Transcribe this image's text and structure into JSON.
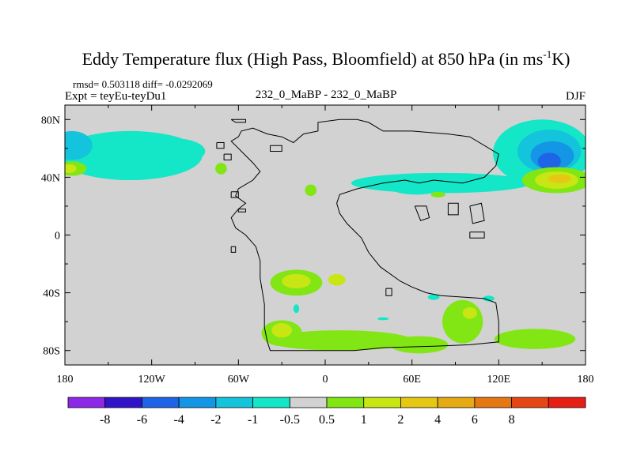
{
  "chart_data": {
    "type": "heatmap",
    "title": {
      "main": "Eddy Temperature flux (High Pass, Bloomfield) at 850 hPa (in ms",
      "sup": "-1",
      "end": "K)"
    },
    "stats_line": "rmsd= 0.503118 diff= -0.0292069",
    "expt_line": "Expt = teyEu-teyDu1",
    "center_label": "232_0_MaBP - 232_0_MaBP",
    "season": "DJF",
    "x_axis": {
      "range": [
        -180,
        180
      ],
      "ticks": [
        {
          "value": -180,
          "label": "180"
        },
        {
          "value": -120,
          "label": "120W"
        },
        {
          "value": -60,
          "label": "60W"
        },
        {
          "value": 0,
          "label": "0"
        },
        {
          "value": 60,
          "label": "60E"
        },
        {
          "value": 120,
          "label": "120E"
        },
        {
          "value": 180,
          "label": "180"
        }
      ]
    },
    "y_axis": {
      "range": [
        -90,
        90
      ],
      "ticks": [
        {
          "value": 80,
          "label": "80N"
        },
        {
          "value": 40,
          "label": "40N"
        },
        {
          "value": 0,
          "label": "0"
        },
        {
          "value": -40,
          "label": "40S"
        },
        {
          "value": -80,
          "label": "80S"
        }
      ]
    },
    "colorbar": {
      "colors": [
        "#8c28e6",
        "#3214c8",
        "#1e64e6",
        "#1496e6",
        "#14c3dc",
        "#14e6c8",
        "#d2d2d2",
        "#82e614",
        "#c8e614",
        "#e6c814",
        "#e6aa14",
        "#e67814",
        "#e64614",
        "#e61e14"
      ],
      "labels": [
        "-8",
        "-6",
        "-4",
        "-2",
        "-1",
        "-0.5",
        "0.5",
        "1",
        "2",
        "4",
        "6",
        "8"
      ]
    },
    "background_color": "#d2d2d2",
    "regions": [
      {
        "level": 5,
        "lon": -135,
        "lat": 55,
        "rlon": 50,
        "rlat": 17
      },
      {
        "level": 5,
        "lon": -105,
        "lat": 58,
        "rlon": 22,
        "rlat": 9
      },
      {
        "level": 4,
        "lon": -175,
        "lat": 62,
        "rlon": 14,
        "rlat": 10
      },
      {
        "level": 5,
        "lon": 150,
        "lat": 57,
        "rlon": 34,
        "rlat": 23
      },
      {
        "level": 4,
        "lon": 155,
        "lat": 58,
        "rlon": 22,
        "rlat": 15
      },
      {
        "level": 3,
        "lon": 157,
        "lat": 55,
        "rlon": 15,
        "rlat": 10
      },
      {
        "level": 2,
        "lon": 155,
        "lat": 51,
        "rlon": 8,
        "rlat": 6
      },
      {
        "level": 5,
        "lon": 80,
        "lat": 36,
        "rlon": 62,
        "rlat": 7
      },
      {
        "level": 5,
        "lon": 63,
        "lat": 33,
        "rlon": 18,
        "rlat": 5
      },
      {
        "level": 7,
        "lon": 160,
        "lat": 38,
        "rlon": 24,
        "rlat": 9
      },
      {
        "level": 8,
        "lon": 160,
        "lat": 38,
        "rlon": 15,
        "rlat": 6
      },
      {
        "level": 9,
        "lon": 162,
        "lat": 39,
        "rlon": 8,
        "rlat": 3
      },
      {
        "level": 7,
        "lon": -175,
        "lat": 46,
        "rlon": 10,
        "rlat": 5
      },
      {
        "level": 8,
        "lon": -177,
        "lat": 46,
        "rlon": 5,
        "rlat": 3
      },
      {
        "level": 7,
        "lon": -72,
        "lat": 46,
        "rlon": 4,
        "rlat": 4
      },
      {
        "level": 7,
        "lon": -10,
        "lat": 31,
        "rlon": 4,
        "rlat": 4
      },
      {
        "level": 7,
        "lon": 78,
        "lat": 28,
        "rlon": 5,
        "rlat": 2
      },
      {
        "level": 7,
        "lon": -20,
        "lat": -33,
        "rlon": 18,
        "rlat": 9
      },
      {
        "level": 8,
        "lon": -20,
        "lat": -32,
        "rlon": 10,
        "rlat": 5
      },
      {
        "level": 8,
        "lon": 8,
        "lat": -31,
        "rlon": 6,
        "rlat": 4
      },
      {
        "level": 7,
        "lon": 10,
        "lat": -73,
        "rlon": 50,
        "rlat": 7
      },
      {
        "level": 7,
        "lon": -30,
        "lat": -68,
        "rlon": 14,
        "rlat": 9
      },
      {
        "level": 8,
        "lon": -30,
        "lat": -66,
        "rlon": 7,
        "rlat": 5
      },
      {
        "level": 7,
        "lon": 95,
        "lat": -60,
        "rlon": 14,
        "rlat": 15
      },
      {
        "level": 8,
        "lon": 100,
        "lat": -54,
        "rlon": 5,
        "rlat": 4
      },
      {
        "level": 7,
        "lon": 145,
        "lat": -72,
        "rlon": 28,
        "rlat": 7
      },
      {
        "level": 7,
        "lon": 65,
        "lat": -76,
        "rlon": 20,
        "rlat": 6
      },
      {
        "level": 5,
        "lon": 75,
        "lat": -43,
        "rlon": 4,
        "rlat": 2
      },
      {
        "level": 5,
        "lon": 113,
        "lat": -44,
        "rlon": 4,
        "rlat": 2
      },
      {
        "level": 5,
        "lon": -20,
        "lat": -51,
        "rlon": 2,
        "rlat": 3
      },
      {
        "level": 5,
        "lon": 40,
        "lat": -58,
        "rlon": 4,
        "rlat": 1
      }
    ],
    "coastlines": [
      [
        [
          -60,
          68
        ],
        [
          -65,
          65
        ],
        [
          -62,
          62
        ],
        [
          -55,
          55
        ],
        [
          -50,
          50
        ],
        [
          -45,
          44
        ],
        [
          -50,
          38
        ],
        [
          -60,
          32
        ],
        [
          -62,
          27
        ],
        [
          -55,
          22
        ],
        [
          -60,
          18
        ],
        [
          -65,
          12
        ],
        [
          -62,
          5
        ],
        [
          -55,
          0
        ],
        [
          -48,
          -8
        ],
        [
          -45,
          -18
        ],
        [
          -45,
          -30
        ],
        [
          -42,
          -48
        ],
        [
          -42,
          -64
        ],
        [
          -40,
          -74
        ],
        [
          -38,
          -80
        ],
        [
          20,
          -80
        ],
        [
          40,
          -78
        ],
        [
          75,
          -77
        ],
        [
          100,
          -76
        ],
        [
          120,
          -74
        ],
        [
          120,
          -60
        ],
        [
          118,
          -47
        ],
        [
          110,
          -44
        ],
        [
          80,
          -42
        ],
        [
          70,
          -40
        ],
        [
          60,
          -36
        ],
        [
          52,
          -32
        ],
        [
          38,
          -22
        ],
        [
          30,
          -12
        ],
        [
          25,
          -2
        ],
        [
          15,
          8
        ],
        [
          10,
          15
        ],
        [
          8,
          22
        ],
        [
          10,
          28
        ],
        [
          22,
          32
        ],
        [
          40,
          36
        ],
        [
          55,
          38
        ],
        [
          65,
          36
        ],
        [
          75,
          38
        ],
        [
          95,
          36
        ],
        [
          110,
          40
        ],
        [
          118,
          48
        ],
        [
          120,
          56
        ],
        [
          100,
          68
        ],
        [
          85,
          70
        ],
        [
          60,
          72
        ],
        [
          40,
          72
        ],
        [
          30,
          78
        ],
        [
          22,
          80
        ],
        [
          10,
          80
        ],
        [
          -5,
          78
        ],
        [
          -5,
          72
        ],
        [
          -15,
          70
        ],
        [
          -22,
          64
        ],
        [
          -30,
          68
        ],
        [
          -40,
          70
        ],
        [
          -50,
          74
        ],
        [
          -58,
          72
        ],
        [
          -60,
          68
        ]
      ],
      [
        [
          -65,
          80
        ],
        [
          -55,
          80
        ],
        [
          -55,
          78
        ],
        [
          -62,
          78
        ],
        [
          -65,
          80
        ]
      ],
      [
        [
          -38,
          62
        ],
        [
          -30,
          62
        ],
        [
          -30,
          58
        ],
        [
          -38,
          58
        ],
        [
          -38,
          62
        ]
      ],
      [
        [
          -75,
          64
        ],
        [
          -70,
          64
        ],
        [
          -70,
          60
        ],
        [
          -75,
          60
        ],
        [
          -75,
          64
        ]
      ],
      [
        [
          -70,
          56
        ],
        [
          -65,
          56
        ],
        [
          -65,
          52
        ],
        [
          -70,
          52
        ],
        [
          -70,
          56
        ]
      ],
      [
        [
          -65,
          30
        ],
        [
          -60,
          30
        ],
        [
          -60,
          26
        ],
        [
          -65,
          26
        ],
        [
          -65,
          30
        ]
      ],
      [
        [
          -60,
          18
        ],
        [
          -55,
          18
        ],
        [
          -55,
          16
        ],
        [
          -60,
          16
        ],
        [
          -60,
          18
        ]
      ],
      [
        [
          -65,
          -8
        ],
        [
          -62,
          -8
        ],
        [
          -62,
          -12
        ],
        [
          -65,
          -12
        ],
        [
          -65,
          -8
        ]
      ],
      [
        [
          62,
          20
        ],
        [
          70,
          20
        ],
        [
          72,
          12
        ],
        [
          66,
          10
        ],
        [
          62,
          20
        ]
      ],
      [
        [
          85,
          22
        ],
        [
          92,
          22
        ],
        [
          92,
          14
        ],
        [
          85,
          14
        ],
        [
          85,
          22
        ]
      ],
      [
        [
          100,
          20
        ],
        [
          108,
          22
        ],
        [
          110,
          10
        ],
        [
          102,
          8
        ],
        [
          100,
          20
        ]
      ],
      [
        [
          100,
          2
        ],
        [
          110,
          2
        ],
        [
          110,
          -2
        ],
        [
          100,
          -2
        ],
        [
          100,
          2
        ]
      ],
      [
        [
          42,
          -37
        ],
        [
          46,
          -37
        ],
        [
          46,
          -42
        ],
        [
          42,
          -42
        ],
        [
          42,
          -37
        ]
      ]
    ]
  }
}
